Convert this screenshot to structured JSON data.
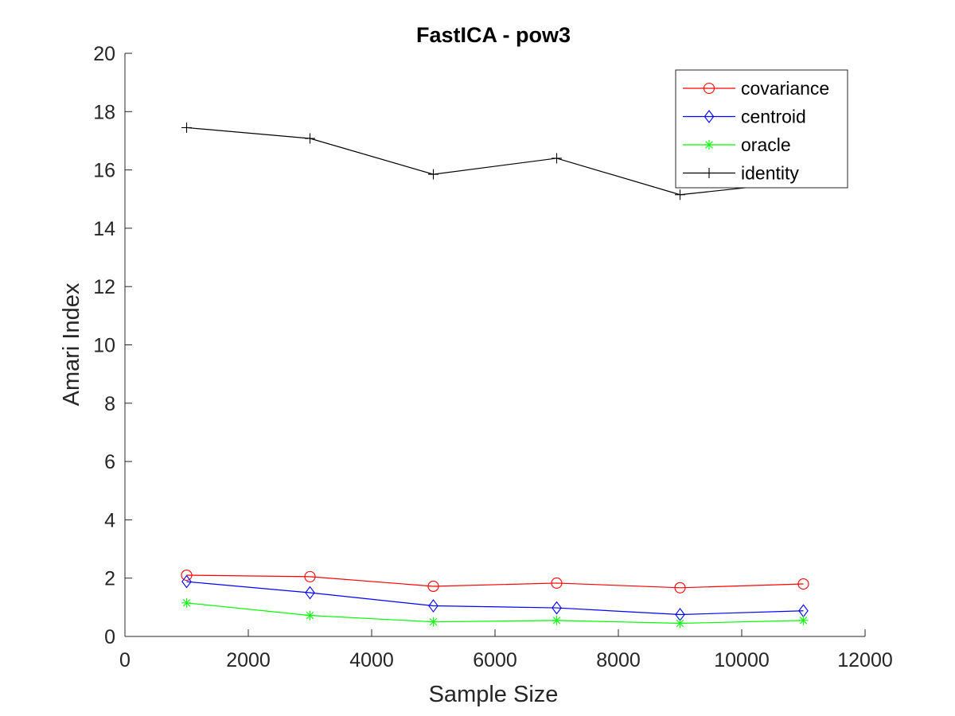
{
  "chart_data": {
    "type": "line",
    "title": "FastICA - pow3",
    "xlabel": "Sample Size",
    "ylabel": "Amari Index",
    "xlim": [
      0,
      12000
    ],
    "ylim": [
      0,
      20
    ],
    "x_ticks": [
      0,
      2000,
      4000,
      6000,
      8000,
      10000,
      12000
    ],
    "y_ticks": [
      0,
      2,
      4,
      6,
      8,
      10,
      12,
      14,
      16,
      18,
      20
    ],
    "x": [
      1000,
      3000,
      5000,
      7000,
      9000,
      11000
    ],
    "grid": false,
    "legend_position": "top-right",
    "series": [
      {
        "name": "covariance",
        "color": "#ff0000",
        "marker": "circle",
        "values": [
          2.1,
          2.05,
          1.72,
          1.83,
          1.67,
          1.8
        ]
      },
      {
        "name": "centroid",
        "color": "#0000ff",
        "marker": "diamond",
        "values": [
          1.88,
          1.5,
          1.05,
          0.98,
          0.75,
          0.88
        ]
      },
      {
        "name": "oracle",
        "color": "#00ff00",
        "marker": "asterisk",
        "values": [
          1.15,
          0.72,
          0.5,
          0.55,
          0.45,
          0.55
        ]
      },
      {
        "name": "identity",
        "color": "#000000",
        "marker": "plus",
        "values": [
          17.45,
          17.08,
          15.85,
          16.4,
          15.15,
          15.6
        ]
      }
    ]
  }
}
